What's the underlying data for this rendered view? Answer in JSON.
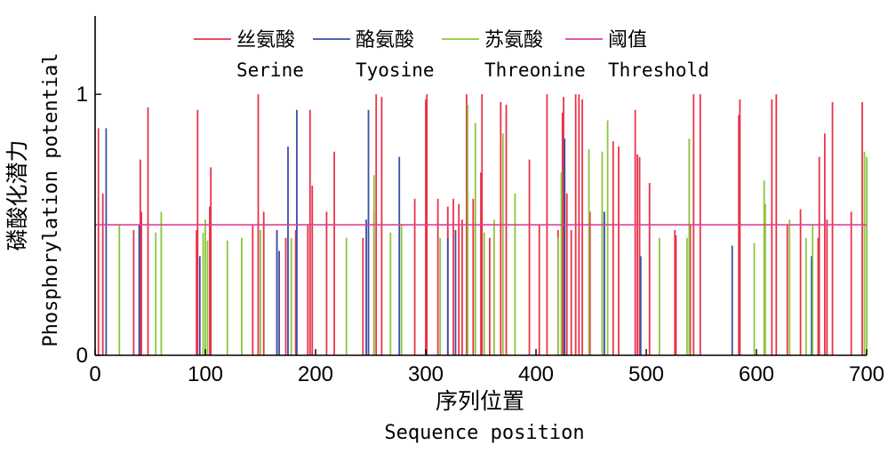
{
  "chart_data": {
    "type": "bar",
    "xlabel": "序列位置",
    "xlabel_en": "Sequence position",
    "ylabel": "磷酸化潜力",
    "ylabel_en": "Phosphorylation potential",
    "xlim": [
      0,
      700
    ],
    "ylim": [
      0,
      1.3
    ],
    "x_ticks": [
      "0",
      "100",
      "200",
      "300",
      "400",
      "500",
      "600",
      "700"
    ],
    "y_ticks": [
      "0",
      "1"
    ],
    "threshold": {
      "name": "阈值",
      "name_en": "Threshold",
      "value": 0.5,
      "color": "#e0409a"
    },
    "legend_position": "top",
    "series": [
      {
        "name": "丝氨酸",
        "name_en": "Serine",
        "color": "#e8334a",
        "points": [
          [
            3,
            0.87
          ],
          [
            7,
            0.62
          ],
          [
            35,
            0.48
          ],
          [
            41,
            0.75
          ],
          [
            42,
            0.55
          ],
          [
            48,
            0.95
          ],
          [
            92,
            0.48
          ],
          [
            93,
            0.94
          ],
          [
            104,
            0.57
          ],
          [
            105,
            0.72
          ],
          [
            143,
            0.5
          ],
          [
            148,
            1.0
          ],
          [
            153,
            0.55
          ],
          [
            165,
            0.48
          ],
          [
            173,
            0.45
          ],
          [
            182,
            0.48
          ],
          [
            193,
            0.5
          ],
          [
            195,
            0.94
          ],
          [
            197,
            0.65
          ],
          [
            210,
            0.55
          ],
          [
            217,
            0.78
          ],
          [
            243,
            0.45
          ],
          [
            253,
            0.55
          ],
          [
            255,
            1.0
          ],
          [
            260,
            0.99
          ],
          [
            290,
            0.6
          ],
          [
            300,
            0.98
          ],
          [
            301,
            1.0
          ],
          [
            311,
            0.6
          ],
          [
            320,
            0.57
          ],
          [
            325,
            0.6
          ],
          [
            330,
            0.58
          ],
          [
            333,
            0.52
          ],
          [
            337,
            1.0
          ],
          [
            343,
            0.6
          ],
          [
            350,
            0.7
          ],
          [
            351,
            1.0
          ],
          [
            358,
            0.45
          ],
          [
            368,
            0.97
          ],
          [
            373,
            0.96
          ],
          [
            394,
            0.75
          ],
          [
            403,
            0.5
          ],
          [
            410,
            1.0
          ],
          [
            420,
            0.48
          ],
          [
            424,
            0.93
          ],
          [
            425,
            0.99
          ],
          [
            428,
            0.62
          ],
          [
            432,
            0.48
          ],
          [
            436,
            1.0
          ],
          [
            439,
            1.0
          ],
          [
            442,
            0.98
          ],
          [
            449,
            0.55
          ],
          [
            460,
            0.55
          ],
          [
            470,
            0.82
          ],
          [
            475,
            0.8
          ],
          [
            490,
            0.94
          ],
          [
            492,
            0.77
          ],
          [
            494,
            0.76
          ],
          [
            503,
            0.66
          ],
          [
            526,
            0.48
          ],
          [
            527,
            0.46
          ],
          [
            540,
            0.5
          ],
          [
            543,
            1.0
          ],
          [
            549,
            1.0
          ],
          [
            584,
            0.92
          ],
          [
            585,
            0.98
          ],
          [
            614,
            0.98
          ],
          [
            618,
            1.0
          ],
          [
            628,
            0.5
          ],
          [
            640,
            0.56
          ],
          [
            656,
            0.45
          ],
          [
            657,
            0.76
          ],
          [
            662,
            0.85
          ],
          [
            664,
            0.52
          ],
          [
            669,
            0.97
          ],
          [
            686,
            0.55
          ],
          [
            696,
            0.97
          ]
        ]
      },
      {
        "name": "酪氨酸",
        "name_en": "Tyosine",
        "color": "#3a4ea8",
        "points": [
          [
            10,
            0.87
          ],
          [
            40,
            0.5
          ],
          [
            95,
            0.38
          ],
          [
            165,
            0.48
          ],
          [
            167,
            0.4
          ],
          [
            175,
            0.8
          ],
          [
            183,
            0.94
          ],
          [
            246,
            0.52
          ],
          [
            248,
            0.94
          ],
          [
            276,
            0.76
          ],
          [
            320,
            0.45
          ],
          [
            327,
            0.48
          ],
          [
            426,
            0.83
          ],
          [
            462,
            0.55
          ],
          [
            495,
            0.38
          ],
          [
            578,
            0.42
          ],
          [
            650,
            0.38
          ]
        ]
      },
      {
        "name": "苏氨酸",
        "name_en": "Threonine",
        "color": "#8cc63f",
        "points": [
          [
            22,
            0.5
          ],
          [
            55,
            0.47
          ],
          [
            60,
            0.55
          ],
          [
            98,
            0.47
          ],
          [
            100,
            0.52
          ],
          [
            102,
            0.44
          ],
          [
            120,
            0.44
          ],
          [
            133,
            0.45
          ],
          [
            150,
            0.48
          ],
          [
            178,
            0.45
          ],
          [
            228,
            0.45
          ],
          [
            253,
            0.69
          ],
          [
            268,
            0.47
          ],
          [
            278,
            0.5
          ],
          [
            313,
            0.45
          ],
          [
            338,
            0.96
          ],
          [
            345,
            0.89
          ],
          [
            353,
            0.47
          ],
          [
            362,
            0.52
          ],
          [
            370,
            0.85
          ],
          [
            381,
            0.62
          ],
          [
            420,
            0.45
          ],
          [
            423,
            0.7
          ],
          [
            448,
            0.79
          ],
          [
            460,
            0.78
          ],
          [
            465,
            0.9
          ],
          [
            512,
            0.45
          ],
          [
            537,
            0.45
          ],
          [
            539,
            0.83
          ],
          [
            598,
            0.43
          ],
          [
            607,
            0.67
          ],
          [
            608,
            0.58
          ],
          [
            630,
            0.52
          ],
          [
            645,
            0.45
          ],
          [
            651,
            0.5
          ],
          [
            698,
            0.78
          ],
          [
            700,
            0.76
          ]
        ]
      }
    ]
  }
}
